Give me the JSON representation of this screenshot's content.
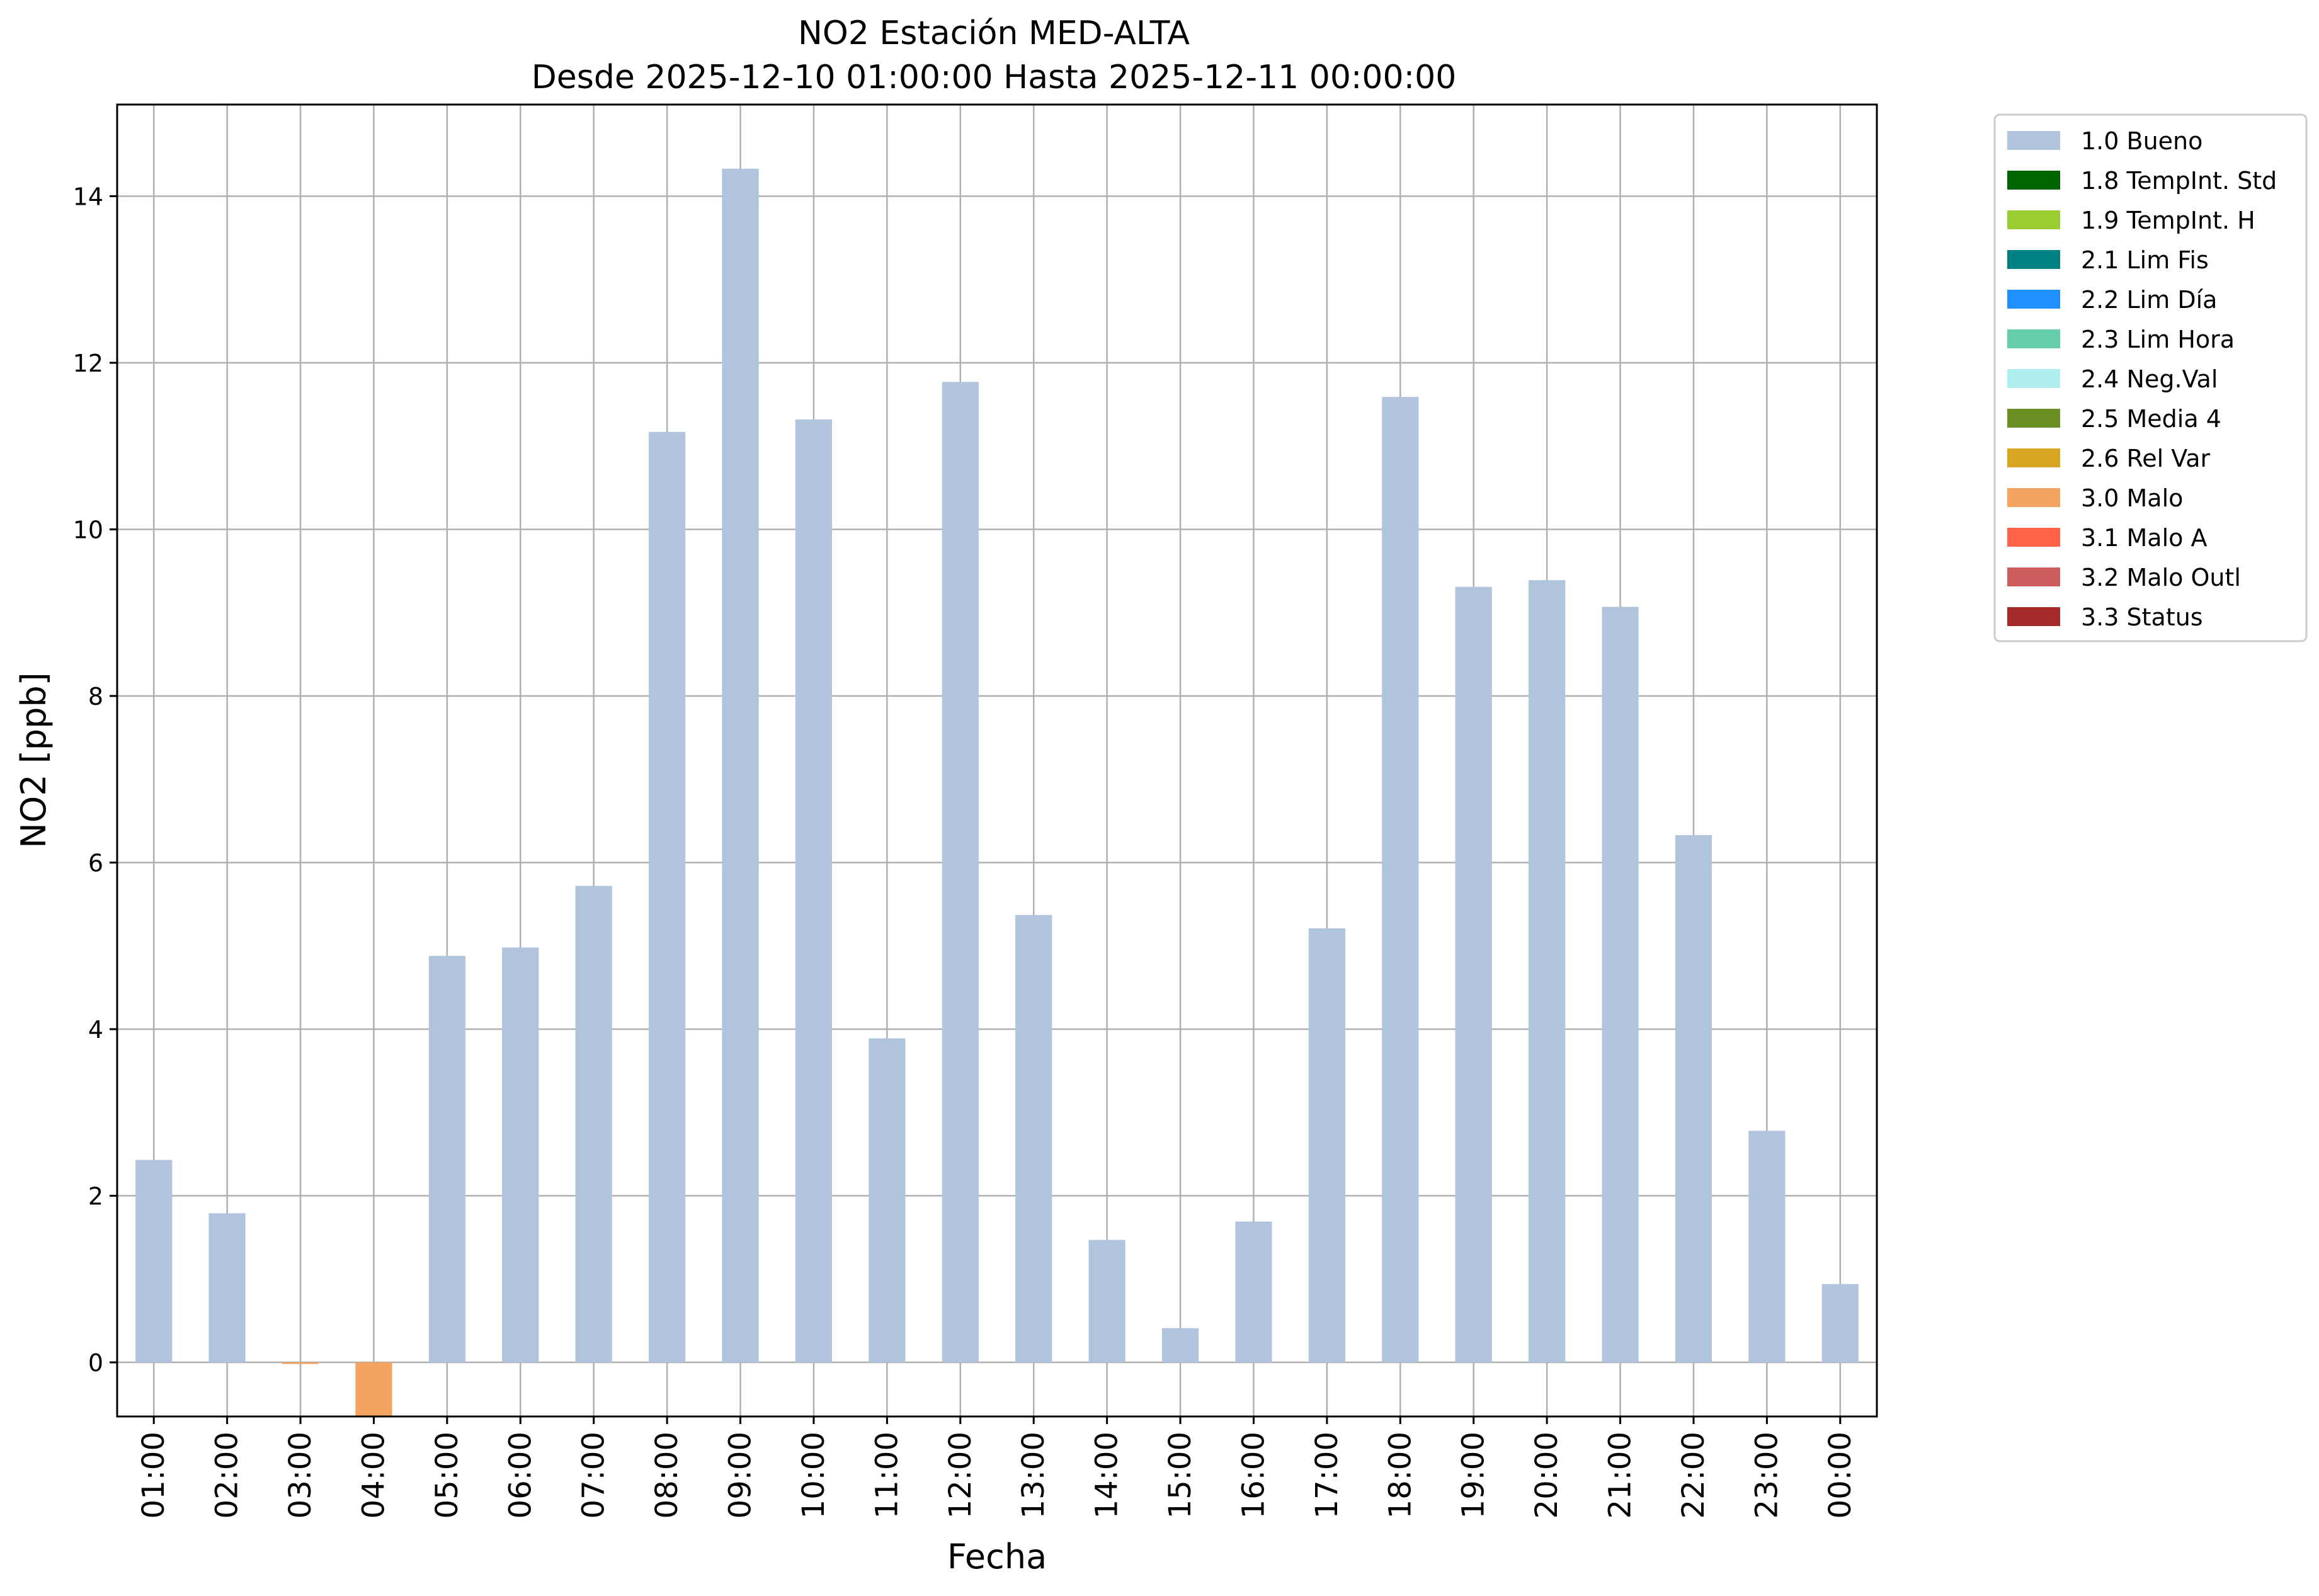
{
  "chart_data": {
    "type": "bar",
    "title": "NO2 Estación MED-ALTA",
    "subtitle": "Desde 2025-12-10 01:00:00 Hasta 2025-12-11 00:00:00",
    "xlabel": "Fecha",
    "ylabel": "NO2 [ppb]",
    "ylim": [
      -0.65,
      15.1
    ],
    "yticks": [
      0,
      2,
      4,
      6,
      8,
      10,
      12,
      14
    ],
    "grid": true,
    "legend_position": "outside-top-right",
    "categories": [
      "01:00",
      "02:00",
      "03:00",
      "04:00",
      "05:00",
      "06:00",
      "07:00",
      "08:00",
      "09:00",
      "10:00",
      "11:00",
      "12:00",
      "13:00",
      "14:00",
      "15:00",
      "16:00",
      "17:00",
      "18:00",
      "19:00",
      "20:00",
      "21:00",
      "22:00",
      "23:00",
      "00:00"
    ],
    "values": [
      2.43,
      1.79,
      -0.02,
      -0.65,
      4.88,
      4.98,
      5.72,
      11.17,
      14.33,
      11.32,
      3.89,
      11.77,
      5.37,
      1.47,
      0.41,
      1.69,
      5.21,
      11.59,
      9.31,
      9.39,
      9.07,
      6.33,
      2.78,
      0.94
    ],
    "flags": [
      "1.0 Bueno",
      "1.0 Bueno",
      "3.0 Malo",
      "3.0 Malo",
      "1.0 Bueno",
      "1.0 Bueno",
      "1.0 Bueno",
      "1.0 Bueno",
      "1.0 Bueno",
      "1.0 Bueno",
      "1.0 Bueno",
      "1.0 Bueno",
      "1.0 Bueno",
      "1.0 Bueno",
      "1.0 Bueno",
      "1.0 Bueno",
      "1.0 Bueno",
      "1.0 Bueno",
      "1.0 Bueno",
      "1.0 Bueno",
      "1.0 Bueno",
      "1.0 Bueno",
      "1.0 Bueno",
      "1.0 Bueno"
    ],
    "legend": [
      {
        "label": "1.0 Bueno",
        "color": "#b0c4de"
      },
      {
        "label": "1.8 TempInt. Std",
        "color": "#006400"
      },
      {
        "label": "1.9 TempInt. H",
        "color": "#9acd32"
      },
      {
        "label": "2.1 Lim Fis",
        "color": "#008080"
      },
      {
        "label": "2.2 Lim Día",
        "color": "#1e90ff"
      },
      {
        "label": "2.3 Lim Hora",
        "color": "#66cdaa"
      },
      {
        "label": "2.4 Neg.Val",
        "color": "#afeeee"
      },
      {
        "label": "2.5 Media 4",
        "color": "#6b8e23"
      },
      {
        "label": "2.6 Rel Var",
        "color": "#daa520"
      },
      {
        "label": "3.0 Malo",
        "color": "#f4a460"
      },
      {
        "label": "3.1 Malo A",
        "color": "#ff6347"
      },
      {
        "label": "3.2 Malo Outl",
        "color": "#cd5c5c"
      },
      {
        "label": "3.3 Status",
        "color": "#a52a2a"
      }
    ]
  }
}
